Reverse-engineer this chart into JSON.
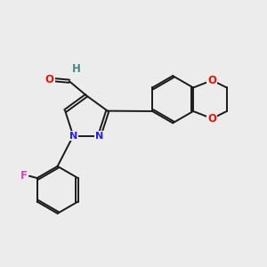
{
  "background_color": "#ececec",
  "bond_color": "#1a1a1a",
  "atom_colors": {
    "O": "#ee1100",
    "N": "#2222ff",
    "F": "#dd44bb",
    "H": "#448888"
  },
  "figsize": [
    3.0,
    3.0
  ],
  "dpi": 100
}
